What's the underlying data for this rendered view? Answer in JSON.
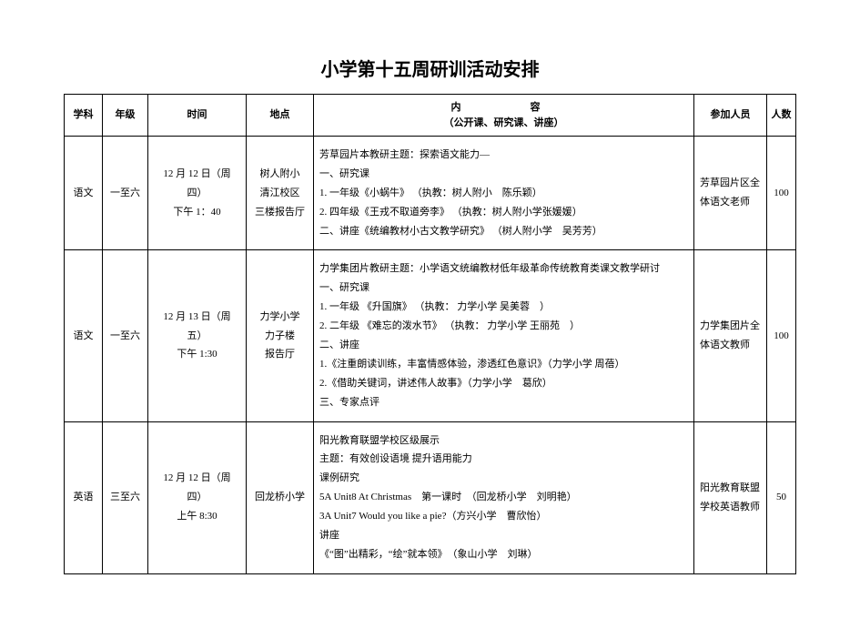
{
  "title": "小学第十五周研训活动安排",
  "headers": {
    "subject": "学科",
    "grade": "年级",
    "time": "时间",
    "place": "地点",
    "content_top": "内　　容",
    "content_bottom": "（公开课、研究课、讲座）",
    "people": "参加人员",
    "count": "人数"
  },
  "rows": [
    {
      "subject": "语文",
      "grade": "一至六",
      "time": "12 月 12 日（周四）\n下午 1：40",
      "place": "树人附小\n清江校区\n三楼报告厅",
      "content": "芳草园片本教研主题：探索语文能力—\n一、研究课\n1. 一年级《小蜗牛》 （执教：树人附小　陈乐颖）\n2. 四年级《王戎不取道旁李》 （执教：树人附小学张媛媛）\n二、讲座《统编教材小古文教学研究》 （树人附小学　吴芳芳）",
      "people": "芳草园片区全体语文老师",
      "count": "100"
    },
    {
      "subject": "语文",
      "grade": "一至六",
      "time": "12 月 13 日（周五）\n下午 1:30",
      "place": "力学小学\n力子楼\n报告厅",
      "content": "力学集团片教研主题：小学语文统编教材低年级革命传统教育类课文教学研讨\n一、研究课\n1. 一年级 《升国旗》 （执教： 力学小学 吴美蓉　）\n2. 二年级 《难忘的泼水节》 （执教： 力学小学 王丽苑　）\n二、讲座\n1.《注重朗读训练，丰富情感体验，渗透红色意识》（力学小学 周蓓）\n2.《借助关键词，讲述伟人故事》（力学小学　葛欣）\n三、专家点评",
      "people": "力学集团片全体语文教师",
      "count": "100"
    },
    {
      "subject": "英语",
      "grade": "三至六",
      "time": "12 月 12 日（周四）\n上午 8:30",
      "place": "回龙桥小学",
      "content": "阳光教育联盟学校区级展示\n主题：有效创设语境 提升语用能力\n课例研究\n5A Unit8 At Christmas　第一课时　（回龙桥小学　刘明艳）\n3A Unit7 Would you like a pie?（方兴小学　曹欣怡）\n讲座\n《“图”出精彩，“绘”就本领》　（象山小学　刘琳）",
      "people": "阳光教育联盟学校英语教师",
      "count": "50"
    }
  ]
}
